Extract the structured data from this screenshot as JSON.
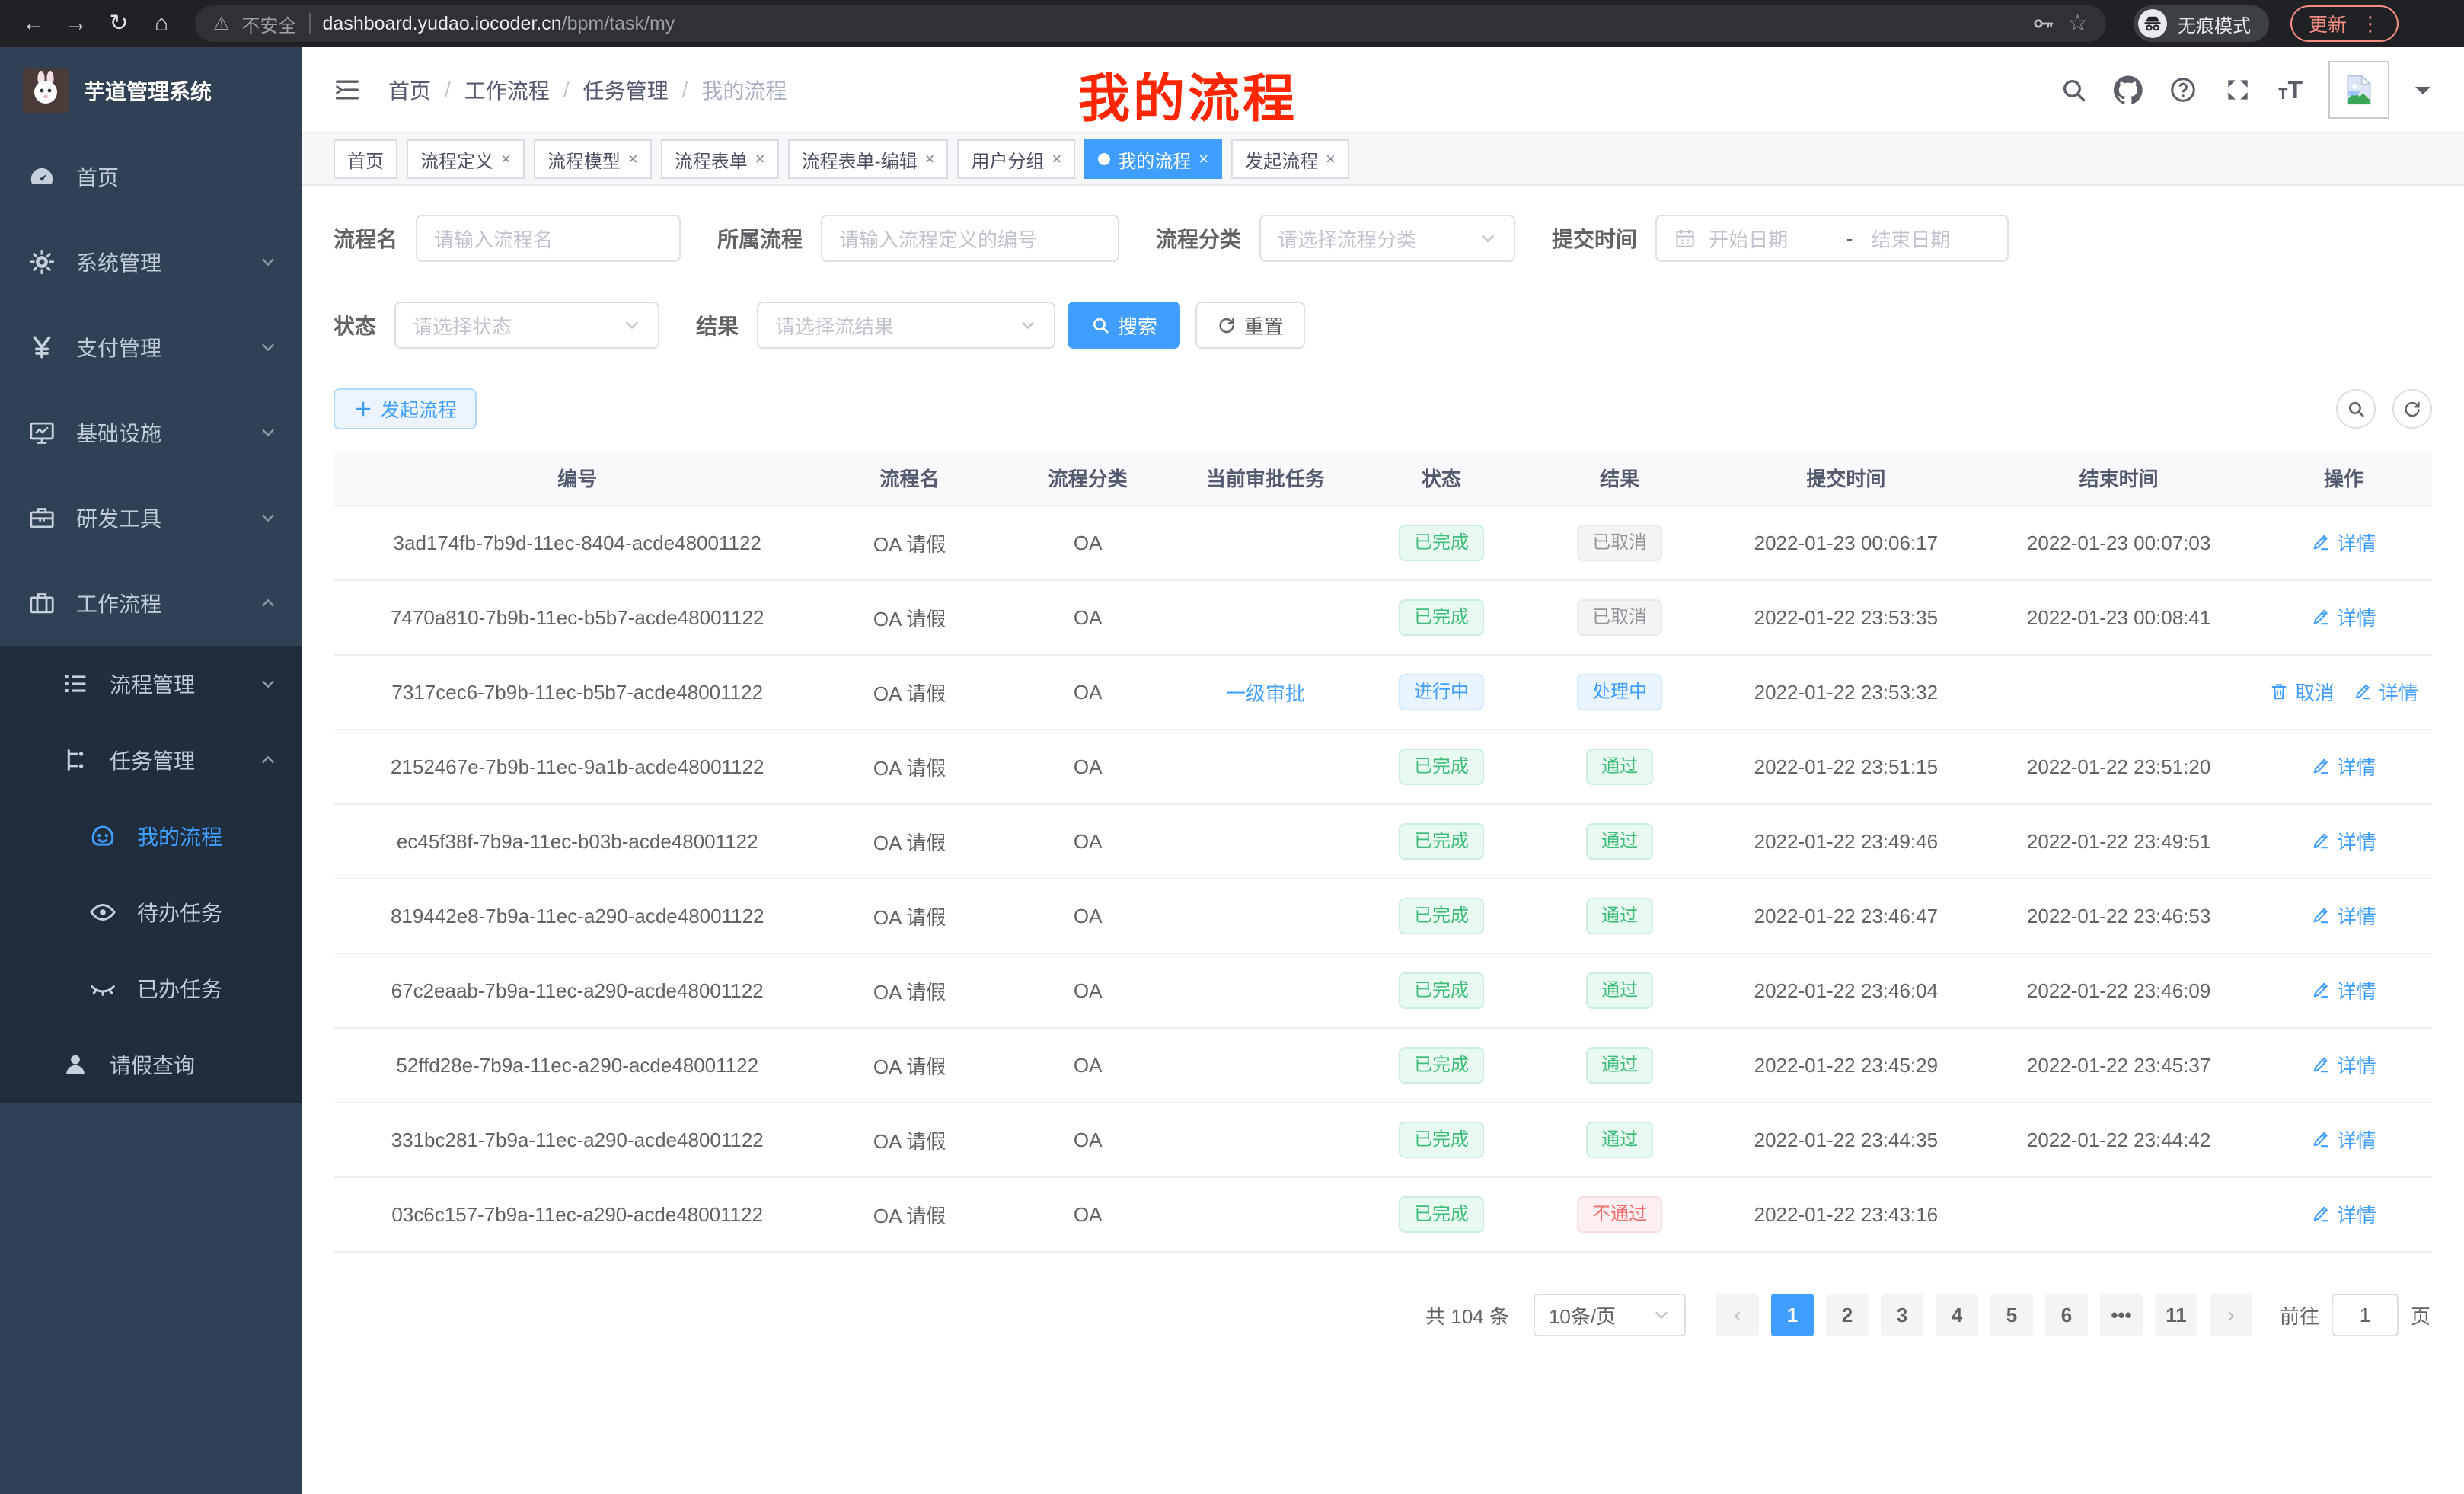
{
  "browser": {
    "security_label": "不安全",
    "url_host": "dashboard.yudao.iocoder.cn",
    "url_path": "/bpm/task/my",
    "incognito_label": "无痕模式",
    "update_label": "更新"
  },
  "annotation": {
    "text": "我的流程"
  },
  "sidebar": {
    "title": "芋道管理系统",
    "items": [
      {
        "label": "首页",
        "icon": "gauge-icon"
      },
      {
        "label": "系统管理",
        "icon": "gear-icon",
        "chevron": "down"
      },
      {
        "label": "支付管理",
        "icon": "yen-icon",
        "chevron": "down"
      },
      {
        "label": "基础设施",
        "icon": "monitor-icon",
        "chevron": "down"
      },
      {
        "label": "研发工具",
        "icon": "toolbox-icon",
        "chevron": "down"
      },
      {
        "label": "工作流程",
        "icon": "briefcase-icon",
        "chevron": "up",
        "expanded": true
      }
    ],
    "submenu": [
      {
        "label": "流程管理",
        "icon": "list-icon",
        "chevron": "down",
        "level": 1
      },
      {
        "label": "任务管理",
        "icon": "flow-icon",
        "chevron": "up",
        "level": 1
      },
      {
        "label": "我的流程",
        "icon": "robot-icon",
        "level": 2,
        "active": true
      },
      {
        "label": "待办任务",
        "icon": "eye-icon",
        "level": 2
      },
      {
        "label": "已办任务",
        "icon": "eye-closed-icon",
        "level": 2
      },
      {
        "label": "请假查询",
        "icon": "user-icon",
        "level": 1
      }
    ]
  },
  "header": {
    "breadcrumb": [
      "首页",
      "工作流程",
      "任务管理",
      "我的流程"
    ]
  },
  "tabs": [
    {
      "label": "首页"
    },
    {
      "label": "流程定义",
      "closable": true
    },
    {
      "label": "流程模型",
      "closable": true
    },
    {
      "label": "流程表单",
      "closable": true
    },
    {
      "label": "流程表单-编辑",
      "closable": true
    },
    {
      "label": "用户分组",
      "closable": true
    },
    {
      "label": "我的流程",
      "closable": true,
      "active": true
    },
    {
      "label": "发起流程",
      "closable": true
    }
  ],
  "filters": {
    "name_label": "流程名",
    "name_placeholder": "请输入流程名",
    "def_label": "所属流程",
    "def_placeholder": "请输入流程定义的编号",
    "category_label": "流程分类",
    "category_placeholder": "请选择流程分类",
    "time_label": "提交时间",
    "start_placeholder": "开始日期",
    "range_separator": "-",
    "end_placeholder": "结束日期",
    "status_label": "状态",
    "status_placeholder": "请选择状态",
    "result_label": "结果",
    "result_placeholder": "请选择流结果",
    "search_button": "搜索",
    "reset_button": "重置"
  },
  "toolbar": {
    "create_button": "发起流程"
  },
  "table": {
    "columns": [
      "编号",
      "流程名",
      "流程分类",
      "当前审批任务",
      "状态",
      "结果",
      "提交时间",
      "结束时间",
      "操作"
    ],
    "action_detail": "详情",
    "action_cancel": "取消",
    "rows": [
      {
        "id": "3ad174fb-7b9d-11ec-8404-acde48001122",
        "name": "OA 请假",
        "category": "OA",
        "task": "",
        "status": "已完成",
        "status_type": "success",
        "result": "已取消",
        "result_type": "info",
        "submit_time": "2022-01-23 00:06:17",
        "end_time": "2022-01-23 00:07:03",
        "actions": [
          "detail"
        ]
      },
      {
        "id": "7470a810-7b9b-11ec-b5b7-acde48001122",
        "name": "OA 请假",
        "category": "OA",
        "task": "",
        "status": "已完成",
        "status_type": "success",
        "result": "已取消",
        "result_type": "info",
        "submit_time": "2022-01-22 23:53:35",
        "end_time": "2022-01-23 00:08:41",
        "actions": [
          "detail"
        ]
      },
      {
        "id": "7317cec6-7b9b-11ec-b5b7-acde48001122",
        "name": "OA 请假",
        "category": "OA",
        "task": "一级审批",
        "status": "进行中",
        "status_type": "primary",
        "result": "处理中",
        "result_type": "primary",
        "submit_time": "2022-01-22 23:53:32",
        "end_time": "",
        "actions": [
          "cancel",
          "detail"
        ]
      },
      {
        "id": "2152467e-7b9b-11ec-9a1b-acde48001122",
        "name": "OA 请假",
        "category": "OA",
        "task": "",
        "status": "已完成",
        "status_type": "success",
        "result": "通过",
        "result_type": "success",
        "submit_time": "2022-01-22 23:51:15",
        "end_time": "2022-01-22 23:51:20",
        "actions": [
          "detail"
        ]
      },
      {
        "id": "ec45f38f-7b9a-11ec-b03b-acde48001122",
        "name": "OA 请假",
        "category": "OA",
        "task": "",
        "status": "已完成",
        "status_type": "success",
        "result": "通过",
        "result_type": "success",
        "submit_time": "2022-01-22 23:49:46",
        "end_time": "2022-01-22 23:49:51",
        "actions": [
          "detail"
        ]
      },
      {
        "id": "819442e8-7b9a-11ec-a290-acde48001122",
        "name": "OA 请假",
        "category": "OA",
        "task": "",
        "status": "已完成",
        "status_type": "success",
        "result": "通过",
        "result_type": "success",
        "submit_time": "2022-01-22 23:46:47",
        "end_time": "2022-01-22 23:46:53",
        "actions": [
          "detail"
        ]
      },
      {
        "id": "67c2eaab-7b9a-11ec-a290-acde48001122",
        "name": "OA 请假",
        "category": "OA",
        "task": "",
        "status": "已完成",
        "status_type": "success",
        "result": "通过",
        "result_type": "success",
        "submit_time": "2022-01-22 23:46:04",
        "end_time": "2022-01-22 23:46:09",
        "actions": [
          "detail"
        ]
      },
      {
        "id": "52ffd28e-7b9a-11ec-a290-acde48001122",
        "name": "OA 请假",
        "category": "OA",
        "task": "",
        "status": "已完成",
        "status_type": "success",
        "result": "通过",
        "result_type": "success",
        "submit_time": "2022-01-22 23:45:29",
        "end_time": "2022-01-22 23:45:37",
        "actions": [
          "detail"
        ]
      },
      {
        "id": "331bc281-7b9a-11ec-a290-acde48001122",
        "name": "OA 请假",
        "category": "OA",
        "task": "",
        "status": "已完成",
        "status_type": "success",
        "result": "通过",
        "result_type": "success",
        "submit_time": "2022-01-22 23:44:35",
        "end_time": "2022-01-22 23:44:42",
        "actions": [
          "detail"
        ]
      },
      {
        "id": "03c6c157-7b9a-11ec-a290-acde48001122",
        "name": "OA 请假",
        "category": "OA",
        "task": "",
        "status": "已完成",
        "status_type": "success",
        "result": "不通过",
        "result_type": "danger",
        "submit_time": "2022-01-22 23:43:16",
        "end_time": "",
        "actions": [
          "detail"
        ]
      }
    ]
  },
  "pagination": {
    "total_text": "共 104 条",
    "page_size": "10条/页",
    "pages": [
      "1",
      "2",
      "3",
      "4",
      "5",
      "6",
      "...",
      "11"
    ],
    "active_page": "1",
    "goto_label": "前往",
    "goto_value": "1",
    "goto_suffix": "页"
  },
  "colors": {
    "accent_blue": "#409eff",
    "sidebar_bg": "#304156",
    "submenu_bg": "#1f2d3d",
    "annotation_red": "#ff2600",
    "success_green": "#3dbd7a",
    "danger_red": "#f56c6c",
    "info_gray": "#909399"
  }
}
